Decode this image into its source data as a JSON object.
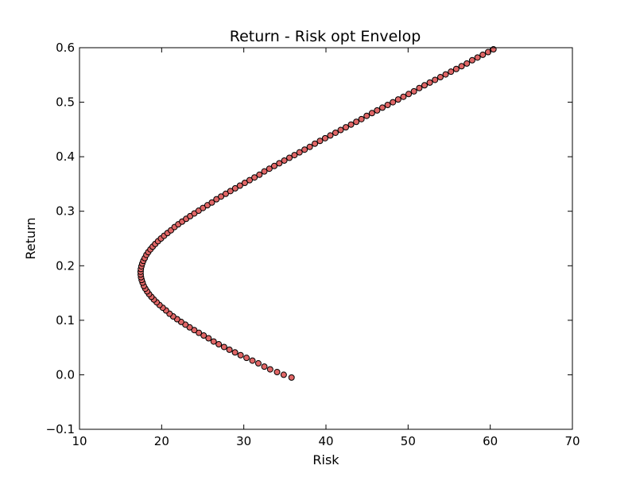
{
  "chart_data": {
    "type": "scatter",
    "title": "Return - Risk opt Envelop",
    "xlabel": "Risk",
    "ylabel": "Return",
    "xlim": [
      10,
      70
    ],
    "ylim": [
      -0.1,
      0.6
    ],
    "xticks": [
      10,
      20,
      30,
      40,
      50,
      60,
      70
    ],
    "yticks": [
      -0.1,
      0.0,
      0.1,
      0.2,
      0.3,
      0.4,
      0.5,
      0.6
    ],
    "xtick_labels": [
      "10",
      "20",
      "30",
      "40",
      "50",
      "60",
      "70"
    ],
    "ytick_labels": [
      "−0.1",
      "0.0",
      "0.1",
      "0.2",
      "0.3",
      "0.4",
      "0.5",
      "0.6"
    ],
    "grid": false,
    "legend": false,
    "marker_color": "#e06666",
    "marker_edge_color": "#000000",
    "series": [
      {
        "points": [
          [
            35.81,
            -0.005
          ],
          [
            34.86,
            0.0
          ],
          [
            34.05,
            0.005
          ],
          [
            33.21,
            0.01
          ],
          [
            32.5,
            0.015
          ],
          [
            31.77,
            0.021
          ],
          [
            31.05,
            0.026
          ],
          [
            30.33,
            0.031
          ],
          [
            29.61,
            0.036
          ],
          [
            28.93,
            0.041
          ],
          [
            28.25,
            0.046
          ],
          [
            27.6,
            0.051
          ],
          [
            26.95,
            0.056
          ],
          [
            26.33,
            0.061
          ],
          [
            25.71,
            0.067
          ],
          [
            25.12,
            0.072
          ],
          [
            24.53,
            0.077
          ],
          [
            23.97,
            0.082
          ],
          [
            23.41,
            0.087
          ],
          [
            22.89,
            0.092
          ],
          [
            22.37,
            0.097
          ],
          [
            21.88,
            0.102
          ],
          [
            21.4,
            0.107
          ],
          [
            20.96,
            0.112
          ],
          [
            20.53,
            0.118
          ],
          [
            20.13,
            0.123
          ],
          [
            19.74,
            0.128
          ],
          [
            19.39,
            0.133
          ],
          [
            19.05,
            0.138
          ],
          [
            18.75,
            0.143
          ],
          [
            18.47,
            0.148
          ],
          [
            18.23,
            0.153
          ],
          [
            18.01,
            0.158
          ],
          [
            17.83,
            0.163
          ],
          [
            17.68,
            0.169
          ],
          [
            17.57,
            0.174
          ],
          [
            17.49,
            0.179
          ],
          [
            17.45,
            0.184
          ],
          [
            17.44,
            0.189
          ],
          [
            17.47,
            0.194
          ],
          [
            17.54,
            0.199
          ],
          [
            17.64,
            0.204
          ],
          [
            17.77,
            0.209
          ],
          [
            17.94,
            0.214
          ],
          [
            18.14,
            0.22
          ],
          [
            18.37,
            0.225
          ],
          [
            18.63,
            0.23
          ],
          [
            18.91,
            0.235
          ],
          [
            19.22,
            0.24
          ],
          [
            19.56,
            0.245
          ],
          [
            19.92,
            0.25
          ],
          [
            20.3,
            0.255
          ],
          [
            20.71,
            0.26
          ],
          [
            21.13,
            0.265
          ],
          [
            21.57,
            0.271
          ],
          [
            22.02,
            0.276
          ],
          [
            22.49,
            0.281
          ],
          [
            22.98,
            0.286
          ],
          [
            23.47,
            0.291
          ],
          [
            23.98,
            0.296
          ],
          [
            24.5,
            0.301
          ],
          [
            25.03,
            0.306
          ],
          [
            25.57,
            0.311
          ],
          [
            26.11,
            0.316
          ],
          [
            26.67,
            0.322
          ],
          [
            27.23,
            0.327
          ],
          [
            27.8,
            0.332
          ],
          [
            28.37,
            0.337
          ],
          [
            28.95,
            0.342
          ],
          [
            29.53,
            0.347
          ],
          [
            30.12,
            0.352
          ],
          [
            30.71,
            0.357
          ],
          [
            31.3,
            0.362
          ],
          [
            31.9,
            0.367
          ],
          [
            32.5,
            0.373
          ],
          [
            33.11,
            0.378
          ],
          [
            33.71,
            0.383
          ],
          [
            34.32,
            0.388
          ],
          [
            34.93,
            0.393
          ],
          [
            35.55,
            0.398
          ],
          [
            36.17,
            0.403
          ],
          [
            36.78,
            0.408
          ],
          [
            37.4,
            0.413
          ],
          [
            38.03,
            0.418
          ],
          [
            38.65,
            0.424
          ],
          [
            39.27,
            0.429
          ],
          [
            39.9,
            0.434
          ],
          [
            40.53,
            0.439
          ],
          [
            41.16,
            0.444
          ],
          [
            41.79,
            0.449
          ],
          [
            42.42,
            0.454
          ],
          [
            43.05,
            0.459
          ],
          [
            43.69,
            0.464
          ],
          [
            44.32,
            0.469
          ],
          [
            44.96,
            0.475
          ],
          [
            45.6,
            0.48
          ],
          [
            46.23,
            0.485
          ],
          [
            46.87,
            0.49
          ],
          [
            47.51,
            0.495
          ],
          [
            48.15,
            0.5
          ],
          [
            48.79,
            0.505
          ],
          [
            49.43,
            0.51
          ],
          [
            50.07,
            0.515
          ],
          [
            50.71,
            0.52
          ],
          [
            51.36,
            0.526
          ],
          [
            52.0,
            0.531
          ],
          [
            52.64,
            0.536
          ],
          [
            53.28,
            0.541
          ],
          [
            53.93,
            0.546
          ],
          [
            54.57,
            0.551
          ],
          [
            55.22,
            0.556
          ],
          [
            55.86,
            0.561
          ],
          [
            56.51,
            0.566
          ],
          [
            57.15,
            0.571
          ],
          [
            57.8,
            0.577
          ],
          [
            58.45,
            0.582
          ],
          [
            59.09,
            0.587
          ],
          [
            59.74,
            0.592
          ],
          [
            60.39,
            0.597
          ],
          [
            61.04,
            0.602
          ]
        ]
      }
    ]
  }
}
